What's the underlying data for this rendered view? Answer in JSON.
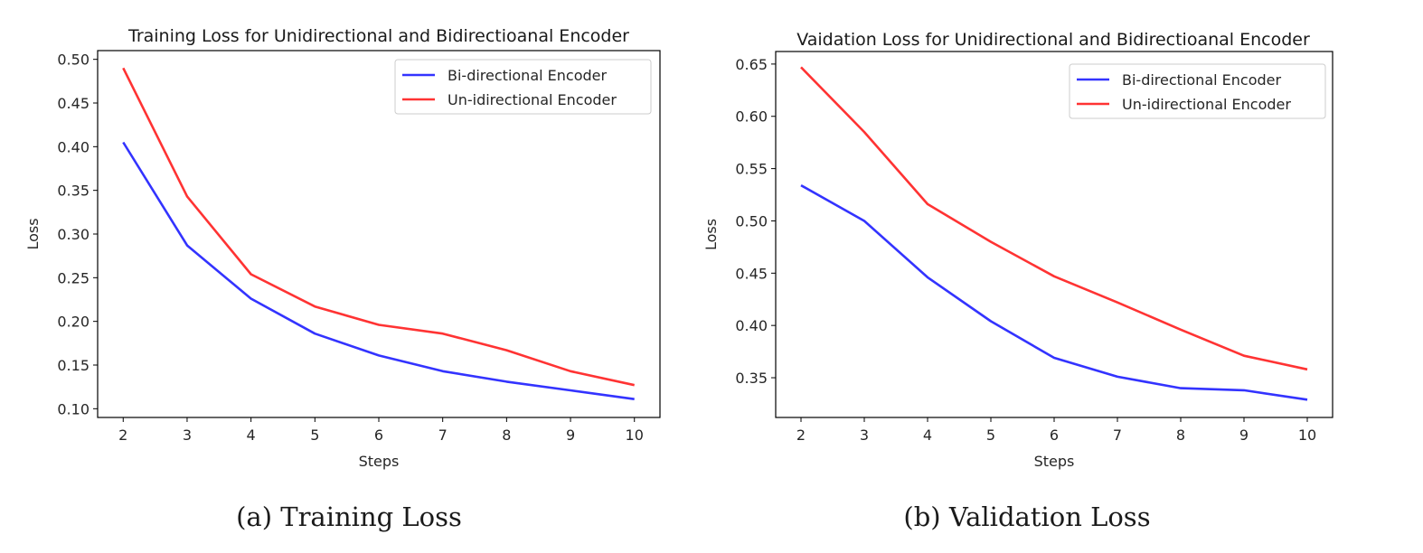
{
  "charts": [
    {
      "id": "a",
      "caption": "(a) Training Loss",
      "chart_data": {
        "type": "line",
        "title": "Training Loss for Unidirectional and Bidirectioanal Encoder",
        "xlabel": "Steps",
        "ylabel": "Loss",
        "x": [
          2,
          3,
          4,
          5,
          6,
          7,
          8,
          9,
          10
        ],
        "xlim": [
          1.6,
          10.4
        ],
        "ylim": [
          0.09,
          0.51
        ],
        "xticks": [
          2,
          3,
          4,
          5,
          6,
          7,
          8,
          9,
          10
        ],
        "xtick_labels": [
          "2",
          "3",
          "4",
          "5",
          "6",
          "7",
          "8",
          "9",
          "10"
        ],
        "yticks": [
          0.1,
          0.15,
          0.2,
          0.25,
          0.3,
          0.35,
          0.4,
          0.45,
          0.5
        ],
        "ytick_labels": [
          "0.10",
          "0.15",
          "0.20",
          "0.25",
          "0.30",
          "0.35",
          "0.40",
          "0.45",
          "0.50"
        ],
        "legend_position": "top-right",
        "grid": false,
        "series": [
          {
            "name": "Bi-directional Encoder",
            "color": "#3333ff",
            "values": [
              0.405,
              0.287,
              0.226,
              0.186,
              0.161,
              0.143,
              0.131,
              0.121,
              0.111
            ]
          },
          {
            "name": "Un-idirectional Encoder",
            "color": "#ff3333",
            "values": [
              0.49,
              0.343,
              0.254,
              0.217,
              0.196,
              0.186,
              0.167,
              0.143,
              0.127
            ]
          }
        ]
      }
    },
    {
      "id": "b",
      "caption": "(b) Validation Loss",
      "chart_data": {
        "type": "line",
        "title": "Vaidation Loss for Unidirectional and Bidirectioanal Encoder",
        "xlabel": "Steps",
        "ylabel": "Loss",
        "x": [
          2,
          3,
          4,
          5,
          6,
          7,
          8,
          9,
          10
        ],
        "xlim": [
          1.6,
          10.4
        ],
        "ylim": [
          0.312,
          0.662
        ],
        "xticks": [
          2,
          3,
          4,
          5,
          6,
          7,
          8,
          9,
          10
        ],
        "xtick_labels": [
          "2",
          "3",
          "4",
          "5",
          "6",
          "7",
          "8",
          "9",
          "10"
        ],
        "yticks": [
          0.35,
          0.4,
          0.45,
          0.5,
          0.55,
          0.6,
          0.65
        ],
        "ytick_labels": [
          "0.35",
          "0.40",
          "0.45",
          "0.50",
          "0.55",
          "0.60",
          "0.65"
        ],
        "legend_position": "top-right",
        "grid": false,
        "series": [
          {
            "name": "Bi-directional Encoder",
            "color": "#3333ff",
            "values": [
              0.534,
              0.5,
              0.446,
              0.404,
              0.369,
              0.351,
              0.34,
              0.338,
              0.329
            ]
          },
          {
            "name": "Un-idirectional Encoder",
            "color": "#ff3333",
            "values": [
              0.647,
              0.585,
              0.516,
              0.48,
              0.447,
              0.422,
              0.396,
              0.371,
              0.358
            ]
          }
        ]
      }
    }
  ]
}
